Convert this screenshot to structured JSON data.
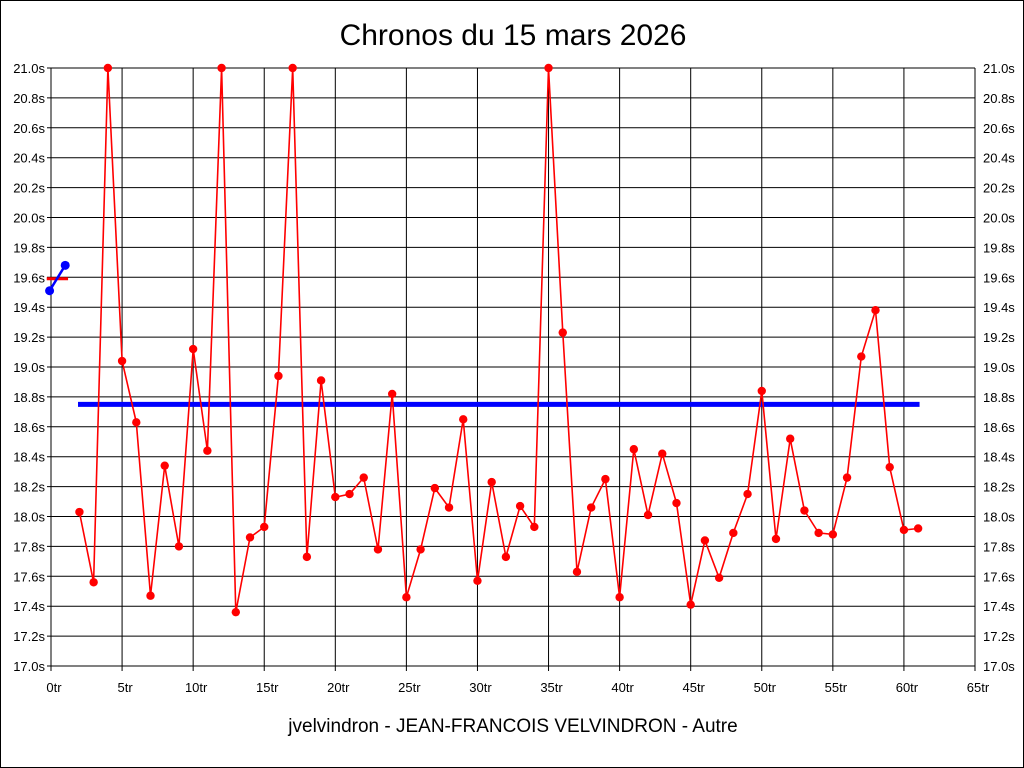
{
  "header": {
    "title": "Chronos du 15 mars 2026"
  },
  "footer": {
    "caption": "jvelvindron - JEAN-FRANCOIS VELVINDRON - Autre"
  },
  "colors": {
    "series": "#ff0000",
    "average": "#0000ff",
    "start_marker": "#0000ff",
    "axis_dash": "#ff0000",
    "grid": "#000000",
    "background": "#ffffff"
  },
  "chart_data": {
    "type": "line",
    "title": "Chronos du 15 mars 2026",
    "xlabel": "",
    "ylabel": "",
    "x_unit": "tr",
    "y_unit": "s",
    "xlim": [
      0,
      65
    ],
    "ylim": [
      17.0,
      21.0
    ],
    "grid": "on",
    "x_tick_values": [
      0,
      5,
      10,
      15,
      20,
      25,
      30,
      35,
      40,
      45,
      50,
      55,
      60,
      65
    ],
    "x_tick_labels": [
      "0tr",
      "5tr",
      "10tr",
      "15tr",
      "20tr",
      "25tr",
      "30tr",
      "35tr",
      "40tr",
      "45tr",
      "50tr",
      "55tr",
      "60tr",
      "65tr"
    ],
    "y_tick_values": [
      21.0,
      20.8,
      20.6,
      20.4,
      20.2,
      20.0,
      19.8,
      19.6,
      19.4,
      19.2,
      19.0,
      18.8,
      18.6,
      18.4,
      18.2,
      18.0,
      17.8,
      17.6,
      17.4,
      17.2,
      17.0
    ],
    "y_tick_labels": [
      "21.0s",
      "20.8s",
      "20.6s",
      "20.4s",
      "20.2s",
      "20.0s",
      "19.8s",
      "19.6s",
      "19.4s",
      "19.2s",
      "19.0s",
      "18.8s",
      "18.6s",
      "18.4s",
      "18.2s",
      "18.0s",
      "17.8s",
      "17.6s",
      "17.4s",
      "17.2s",
      "17.0s"
    ],
    "series": [
      {
        "name": "lap-times",
        "color": "#ff0000",
        "x": [
          2,
          3,
          4,
          5,
          6,
          7,
          8,
          9,
          10,
          11,
          12,
          13,
          14,
          15,
          16,
          17,
          18,
          19,
          20,
          21,
          22,
          23,
          24,
          25,
          26,
          27,
          28,
          29,
          30,
          31,
          32,
          33,
          34,
          35,
          36,
          37,
          38,
          39,
          40,
          41,
          42,
          43,
          44,
          45,
          46,
          47,
          48,
          49,
          50,
          51,
          52,
          53,
          54,
          55,
          56,
          57,
          58,
          59,
          60,
          61
        ],
        "values": [
          18.03,
          17.56,
          21.0,
          19.04,
          18.63,
          17.47,
          18.34,
          17.8,
          19.12,
          18.44,
          21.0,
          17.36,
          17.86,
          17.93,
          18.94,
          21.0,
          17.73,
          18.91,
          18.13,
          18.15,
          18.26,
          17.78,
          18.82,
          17.46,
          17.78,
          18.19,
          18.06,
          18.65,
          17.57,
          18.23,
          17.73,
          18.07,
          17.93,
          21.0,
          19.23,
          17.63,
          18.06,
          18.25,
          17.46,
          18.45,
          18.01,
          18.42,
          18.09,
          17.41,
          17.84,
          17.59,
          17.89,
          18.15,
          18.84,
          17.85,
          18.52,
          18.04,
          17.89,
          17.88,
          18.26,
          19.07,
          19.38,
          18.33,
          17.91,
          17.92
        ]
      },
      {
        "name": "start-segment",
        "color": "#0000ff",
        "x": [
          -0.1,
          1.0
        ],
        "values": [
          19.51,
          19.68
        ]
      }
    ],
    "average_line": {
      "value": 18.75,
      "x_start": 1.9,
      "x_end": 61.1,
      "color": "#0000ff"
    },
    "axis_dash": {
      "value": 19.59,
      "x_start": -0.3,
      "x_end": 1.2,
      "color": "#ff0000"
    },
    "legend": "none"
  }
}
